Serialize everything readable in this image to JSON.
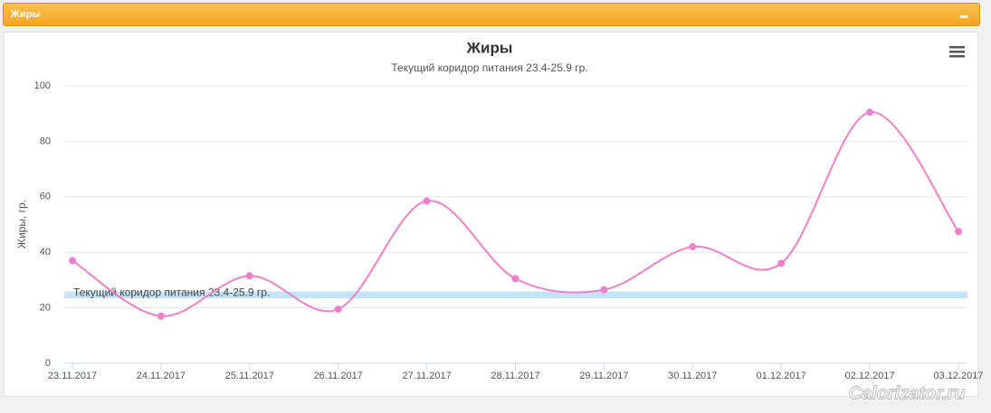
{
  "panel": {
    "title": "Жиры"
  },
  "watermark": "Calorizator.ru",
  "chart_data": {
    "type": "line",
    "title": "Жиры",
    "subtitle": "Текущий коридор питания 23.4-25.9 гр.",
    "y_label": "Жиры, гр.",
    "categories": [
      "23.11.2017",
      "24.11.2017",
      "25.11.2017",
      "26.11.2017",
      "27.11.2017",
      "28.11.2017",
      "29.11.2017",
      "30.11.2017",
      "01.12.2017",
      "02.12.2017",
      "03.12.2017"
    ],
    "series": [
      {
        "color": "#ee7fca",
        "values": [
          37,
          17,
          31.5,
          19.5,
          58.5,
          30.5,
          26.5,
          42,
          36,
          90.5,
          47.5
        ]
      }
    ],
    "plot_band": {
      "from": 23.4,
      "to": 25.9,
      "label": "Текущий коридор питания 23.4-25.9 гр.",
      "color": "#c5e3f6"
    },
    "ylim": [
      0,
      100
    ],
    "yticks": [
      0,
      20,
      40,
      60,
      80,
      100
    ],
    "grid": true
  }
}
